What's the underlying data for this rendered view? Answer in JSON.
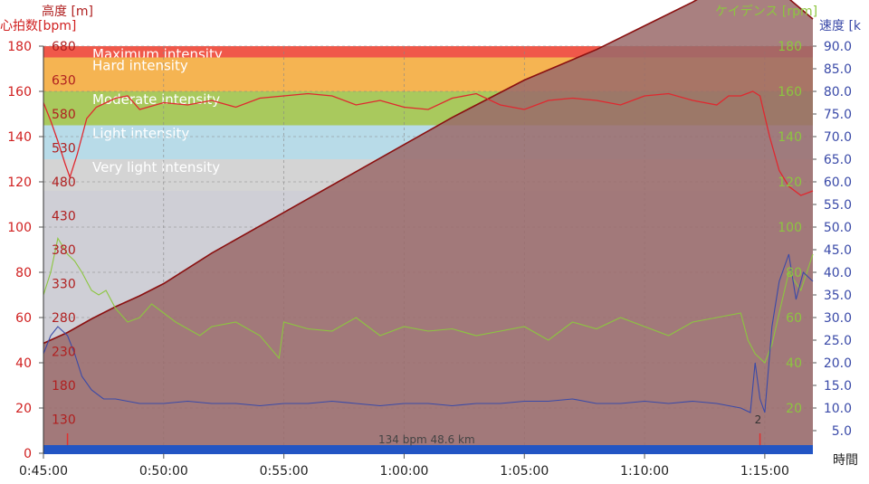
{
  "labels": {
    "hr_title": "心拍数[bpm]",
    "alt_title": "高度 [m]",
    "cad_title": "ケイデンス [rpm]",
    "speed_title": "速度 [k",
    "time_title": "時間",
    "footer": "134 bpm 48.6 km",
    "lap_marker": "2"
  },
  "colors": {
    "hr": "#e0282f",
    "alt_line": "#8a1010",
    "alt_fill": "#9a6a6a",
    "cad": "#8cc63f",
    "speed": "#3a4aa8",
    "zone_max": "#f0584a",
    "zone_hard": "#f5b452",
    "zone_moderate": "#a9c95d",
    "zone_light": "#b8dbe8",
    "zone_verylight": "#d4d4d4",
    "zone_base": "#cfcfd6",
    "bar": "#2255c4"
  },
  "chart_data": {
    "type": "line",
    "x_ticks": [
      "0:45:00",
      "0:50:00",
      "0:55:00",
      "1:00:00",
      "1:05:00",
      "1:10:00",
      "1:15:00"
    ],
    "x_range_min": [
      45,
      77
    ],
    "axes": {
      "hr": {
        "label": "心拍数[bpm]",
        "range": [
          0,
          180
        ],
        "ticks": [
          0,
          20,
          40,
          60,
          80,
          100,
          120,
          140,
          160,
          180
        ]
      },
      "altitude": {
        "label": "高度 [m]",
        "range": [
          80,
          680
        ],
        "ticks": [
          130,
          180,
          230,
          280,
          330,
          380,
          430,
          480,
          530,
          580,
          630,
          680
        ]
      },
      "cadence": {
        "label": "ケイデンス [rpm]",
        "range": [
          0,
          180
        ],
        "ticks": [
          20,
          40,
          60,
          80,
          100,
          120,
          140,
          160,
          180
        ]
      },
      "speed": {
        "label": "速度 [k",
        "range": [
          0,
          90
        ],
        "ticks": [
          5.0,
          10.0,
          15.0,
          20.0,
          25.0,
          30.0,
          35.0,
          40.0,
          45.0,
          50.0,
          55.0,
          60.0,
          65.0,
          70.0,
          75.0,
          80.0,
          85.0,
          90.0
        ]
      }
    },
    "zones": [
      {
        "name": "Maximum intensity",
        "min": 175,
        "max": 180
      },
      {
        "name": "Hard intensity",
        "min": 160,
        "max": 175
      },
      {
        "name": "Moderate intensity",
        "min": 145,
        "max": 160
      },
      {
        "name": "Light intensity",
        "min": 130,
        "max": 145
      },
      {
        "name": "Very light intensity",
        "min": 116,
        "max": 130
      }
    ],
    "series": [
      {
        "name": "高度",
        "axis": "altitude",
        "x": [
          45,
          46,
          47,
          48,
          49,
          50,
          52,
          55,
          58,
          60,
          62,
          65,
          68,
          70,
          72,
          73,
          74,
          74.6,
          75,
          76,
          77
        ],
        "y": [
          242,
          258,
          278,
          296,
          312,
          330,
          375,
          435,
          495,
          535,
          575,
          630,
          675,
          710,
          745,
          765,
          785,
          786,
          783,
          750,
          720
        ]
      },
      {
        "name": "心拍数",
        "axis": "hr",
        "x": [
          45,
          45.3,
          45.6,
          45.9,
          46.1,
          46.4,
          46.8,
          47.2,
          47.6,
          48,
          48.5,
          49,
          50,
          51,
          52,
          53,
          54,
          55,
          56,
          57,
          58,
          59,
          60,
          61,
          62,
          63,
          64,
          65,
          66,
          67,
          68,
          69,
          70,
          71,
          72,
          73,
          73.5,
          74,
          74.5,
          74.8,
          75.2,
          75.6,
          76,
          76.5,
          77
        ],
        "y": [
          155,
          147,
          138,
          128,
          122,
          132,
          148,
          153,
          155,
          157,
          158,
          152,
          155,
          154,
          156,
          153,
          157,
          158,
          159,
          158,
          154,
          156,
          153,
          152,
          157,
          159,
          154,
          152,
          156,
          157,
          156,
          154,
          158,
          159,
          156,
          154,
          158,
          158,
          160,
          158,
          140,
          125,
          118,
          114,
          116
        ]
      },
      {
        "name": "ケイデンス",
        "axis": "cadence",
        "x": [
          45,
          45.3,
          45.6,
          46,
          46.3,
          46.6,
          47,
          47.3,
          47.6,
          48,
          48.5,
          49,
          49.5,
          50,
          50.5,
          51,
          51.5,
          52,
          53,
          54,
          54.8,
          55,
          56,
          57,
          58,
          59,
          60,
          61,
          62,
          63,
          64,
          65,
          66,
          67,
          68,
          69,
          70,
          71,
          72,
          73,
          74,
          74.3,
          74.6,
          75,
          75.3,
          75.6,
          76,
          76.5,
          77
        ],
        "y": [
          70,
          80,
          95,
          88,
          85,
          80,
          72,
          70,
          72,
          64,
          58,
          60,
          66,
          62,
          58,
          55,
          52,
          56,
          58,
          52,
          42,
          58,
          55,
          54,
          60,
          52,
          56,
          54,
          55,
          52,
          54,
          56,
          50,
          58,
          55,
          60,
          56,
          52,
          58,
          60,
          62,
          50,
          44,
          40,
          48,
          62,
          80,
          72,
          88
        ]
      },
      {
        "name": "速度",
        "axis": "speed",
        "x": [
          45,
          45.3,
          45.6,
          46,
          46.3,
          46.6,
          47,
          47.5,
          48,
          49,
          50,
          51,
          52,
          53,
          54,
          55,
          56,
          57,
          58,
          59,
          60,
          61,
          62,
          63,
          64,
          65,
          66,
          67,
          68,
          69,
          70,
          71,
          72,
          73,
          74,
          74.4,
          74.6,
          74.8,
          75,
          75.3,
          75.6,
          76,
          76.3,
          76.6,
          77
        ],
        "y": [
          22,
          26,
          28,
          26,
          22,
          17,
          14,
          12,
          12,
          11,
          11,
          11.5,
          11,
          11,
          10.5,
          11,
          11,
          11.5,
          11,
          10.5,
          11,
          11,
          10.5,
          11,
          11,
          11.5,
          11.5,
          12,
          11,
          11,
          11.5,
          11,
          11.5,
          11,
          10,
          9,
          20,
          12,
          9,
          28,
          38,
          44,
          34,
          40,
          38
        ]
      }
    ],
    "laps": [
      {
        "time": 46,
        "label": ""
      },
      {
        "time": 74.8,
        "label": "2"
      }
    ]
  }
}
